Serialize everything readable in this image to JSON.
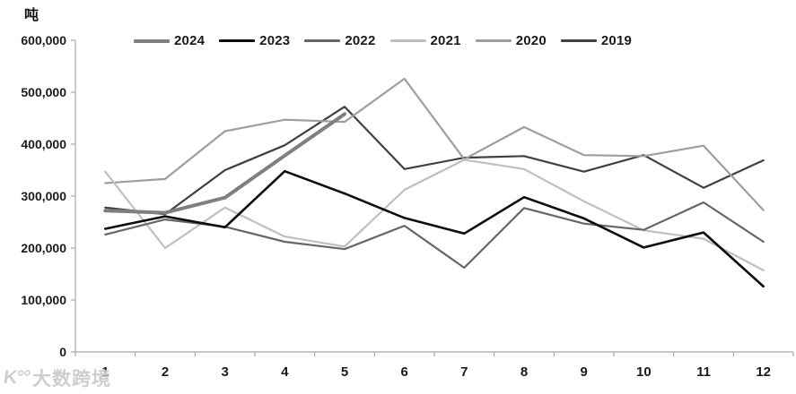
{
  "unit_label": "吨",
  "watermark": {
    "logo": "K°°",
    "text": "大数跨境"
  },
  "axis_colors": {
    "line": "#a8a8a8",
    "tick": "#a8a8a8"
  },
  "chart_data": {
    "type": "line",
    "title": "",
    "xlabel": "",
    "ylabel": "吨",
    "x": [
      1,
      2,
      3,
      4,
      5,
      6,
      7,
      8,
      9,
      10,
      11,
      12
    ],
    "ylim": [
      0,
      600000
    ],
    "ytick_step": 100000,
    "ytick_labels": [
      "0",
      "100,000",
      "200,000",
      "300,000",
      "400,000",
      "500,000",
      "600,000"
    ],
    "grid": false,
    "legend_position": "top",
    "series": [
      {
        "name": "2024",
        "color": "#7f7f7f",
        "width": 4,
        "values": [
          272000,
          268000,
          297000,
          378000,
          458000
        ]
      },
      {
        "name": "2023",
        "color": "#0d0d0d",
        "width": 2.6,
        "values": [
          237000,
          261000,
          240000,
          348000,
          305000,
          258000,
          228000,
          298000,
          257000,
          201000,
          230000,
          126000
        ]
      },
      {
        "name": "2022",
        "color": "#666666",
        "width": 2.2,
        "values": [
          226000,
          255000,
          241000,
          212000,
          198000,
          243000,
          162000,
          277000,
          247000,
          235000,
          288000,
          212000
        ]
      },
      {
        "name": "2021",
        "color": "#bfbfbf",
        "width": 2.2,
        "values": [
          347000,
          200000,
          278000,
          222000,
          203000,
          312000,
          370000,
          352000,
          290000,
          234000,
          218000,
          157000
        ]
      },
      {
        "name": "2020",
        "color": "#9e9e9e",
        "width": 2.2,
        "values": [
          325000,
          333000,
          425000,
          447000,
          443000,
          526000,
          371000,
          433000,
          379000,
          377000,
          397000,
          273000
        ]
      },
      {
        "name": "2019",
        "color": "#404040",
        "width": 2.2,
        "values": [
          278000,
          265000,
          350000,
          398000,
          472000,
          352000,
          374000,
          377000,
          347000,
          379000,
          316000,
          369000
        ]
      }
    ]
  }
}
